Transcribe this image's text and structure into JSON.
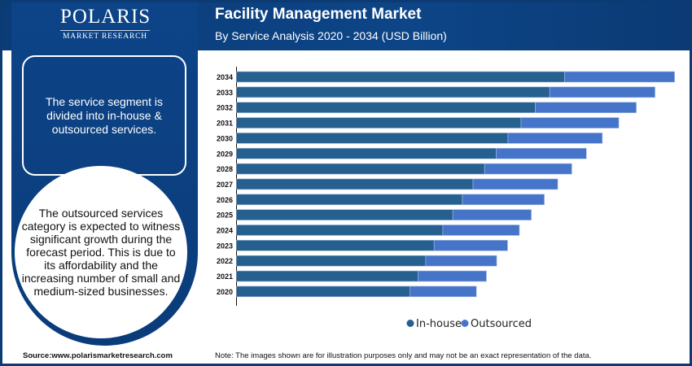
{
  "brand": {
    "name": "POLARIS",
    "sub": "MARKET RESEARCH"
  },
  "header": {
    "title": "Facility Management Market",
    "subtitle": "By Service Analysis 2020 - 2034 (USD Billion)"
  },
  "left": {
    "box_text": "The service segment is divided into in-house & outsourced services.",
    "circle_text": "The outsourced services category is expected to witness significant growth during the forecast period. This is due to its affordability and the increasing number of small and medium-sized businesses."
  },
  "footer": {
    "source": "Source:www.polarismarketresearch.com",
    "note": "Note: The images shown are for illustration purposes only and may not be an exact representation of the data."
  },
  "colors": {
    "navy": "#0c3a72",
    "in_house": "#26608f",
    "outsourced": "#4674c8"
  },
  "chart_data": {
    "type": "bar",
    "orientation": "horizontal",
    "stacked": true,
    "title": "Facility Management Market",
    "subtitle": "By Service Analysis 2020 - 2034 (USD Billion)",
    "categories": [
      "2034",
      "2033",
      "2032",
      "2031",
      "2030",
      "2029",
      "2028",
      "2027",
      "2026",
      "2025",
      "2024",
      "2023",
      "2022",
      "2021",
      "2020"
    ],
    "series": [
      {
        "name": "In-house",
        "color": "#26608f",
        "values": [
          403,
          384.6,
          367,
          349.4,
          333.3,
          318.8,
          304.6,
          290.4,
          277.4,
          265.6,
          253.3,
          242.6,
          232.3,
          222.7,
          213.1
        ]
      },
      {
        "name": "Outsourced",
        "color": "#4674c8",
        "values": [
          135,
          129.4,
          124,
          120.1,
          116,
          110.9,
          107.2,
          104.1,
          100.6,
          96.4,
          94.1,
          90.3,
          87.2,
          84.2,
          81.5
        ]
      }
    ],
    "xlim": [
      0,
      560
    ],
    "x_axis_labels_shown": false,
    "grid": false,
    "legend": "bottom"
  }
}
